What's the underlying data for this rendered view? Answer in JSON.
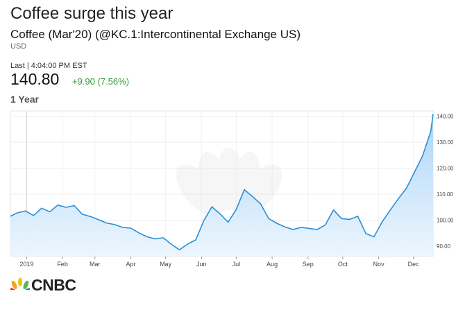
{
  "header": {
    "title": "Coffee surge this year",
    "instrument": "Coffee (Mar'20) (@KC.1:Intercontinental Exchange US)",
    "currency": "USD",
    "last_time": "Last | 4:04:00 PM EST",
    "price": "140.80",
    "change": "+9.90 (7.56%)",
    "change_color": "#2e9d3a",
    "period": "1 Year"
  },
  "brand": {
    "name": "CNBC",
    "icon": "peacock-icon"
  },
  "chart_data": {
    "type": "area",
    "title": "",
    "xlabel": "",
    "ylabel": "",
    "ylim": [
      86,
      142
    ],
    "y_ticks": [
      "140.00",
      "130.00",
      "120.00",
      "110.00",
      "100.00",
      "90.00"
    ],
    "y_tick_values": [
      140,
      130,
      120,
      110,
      100,
      90
    ],
    "x_ticks": [
      "2019",
      "Feb",
      "Mar",
      "Apr",
      "May",
      "Jun",
      "Jul",
      "Aug",
      "Sep",
      "Oct",
      "Nov",
      "Dec"
    ],
    "x_tick_dates": [
      "2019-01-01",
      "2019-02-01",
      "2019-03-01",
      "2019-04-01",
      "2019-05-01",
      "2019-06-01",
      "2019-07-01",
      "2019-08-01",
      "2019-09-01",
      "2019-10-01",
      "2019-11-01",
      "2019-12-01"
    ],
    "x_range": [
      "2018-12-18",
      "2019-12-18"
    ],
    "grid": true,
    "line_color": "#2a8fd6",
    "fill_color": "#cfe7fb",
    "series": [
      {
        "x": [
          "2018-12-18",
          "2018-12-24",
          "2018-12-31",
          "2019-01-07",
          "2019-01-14",
          "2019-01-21",
          "2019-01-28",
          "2019-02-04",
          "2019-02-11",
          "2019-02-18",
          "2019-02-25",
          "2019-03-04",
          "2019-03-11",
          "2019-03-18",
          "2019-03-25",
          "2019-04-01",
          "2019-04-08",
          "2019-04-15",
          "2019-04-22",
          "2019-04-29",
          "2019-05-06",
          "2019-05-13",
          "2019-05-20",
          "2019-05-27",
          "2019-06-03",
          "2019-06-10",
          "2019-06-17",
          "2019-06-24",
          "2019-07-01",
          "2019-07-08",
          "2019-07-15",
          "2019-07-22",
          "2019-07-29",
          "2019-08-05",
          "2019-08-12",
          "2019-08-19",
          "2019-08-26",
          "2019-09-02",
          "2019-09-09",
          "2019-09-16",
          "2019-09-23",
          "2019-09-30",
          "2019-10-07",
          "2019-10-14",
          "2019-10-21",
          "2019-10-28",
          "2019-11-04",
          "2019-11-11",
          "2019-11-18",
          "2019-11-25",
          "2019-12-02",
          "2019-12-09",
          "2019-12-16",
          "2019-12-18"
        ],
        "values": [
          101.5,
          102.8,
          103.5,
          101.8,
          104.6,
          103.2,
          105.8,
          104.9,
          105.6,
          102.3,
          101.4,
          100.2,
          98.9,
          98.3,
          97.2,
          96.9,
          95.1,
          93.6,
          92.8,
          93.2,
          90.7,
          88.6,
          90.8,
          92.4,
          99.8,
          105.1,
          102.4,
          99.2,
          104.1,
          111.7,
          109.1,
          106.3,
          100.6,
          98.8,
          97.4,
          96.4,
          97.2,
          96.8,
          96.4,
          98.2,
          103.9,
          100.6,
          100.3,
          101.5,
          94.8,
          93.6,
          99.3,
          103.9,
          108.2,
          112.3,
          118.5,
          124.8,
          134.2,
          140.8
        ]
      }
    ]
  }
}
